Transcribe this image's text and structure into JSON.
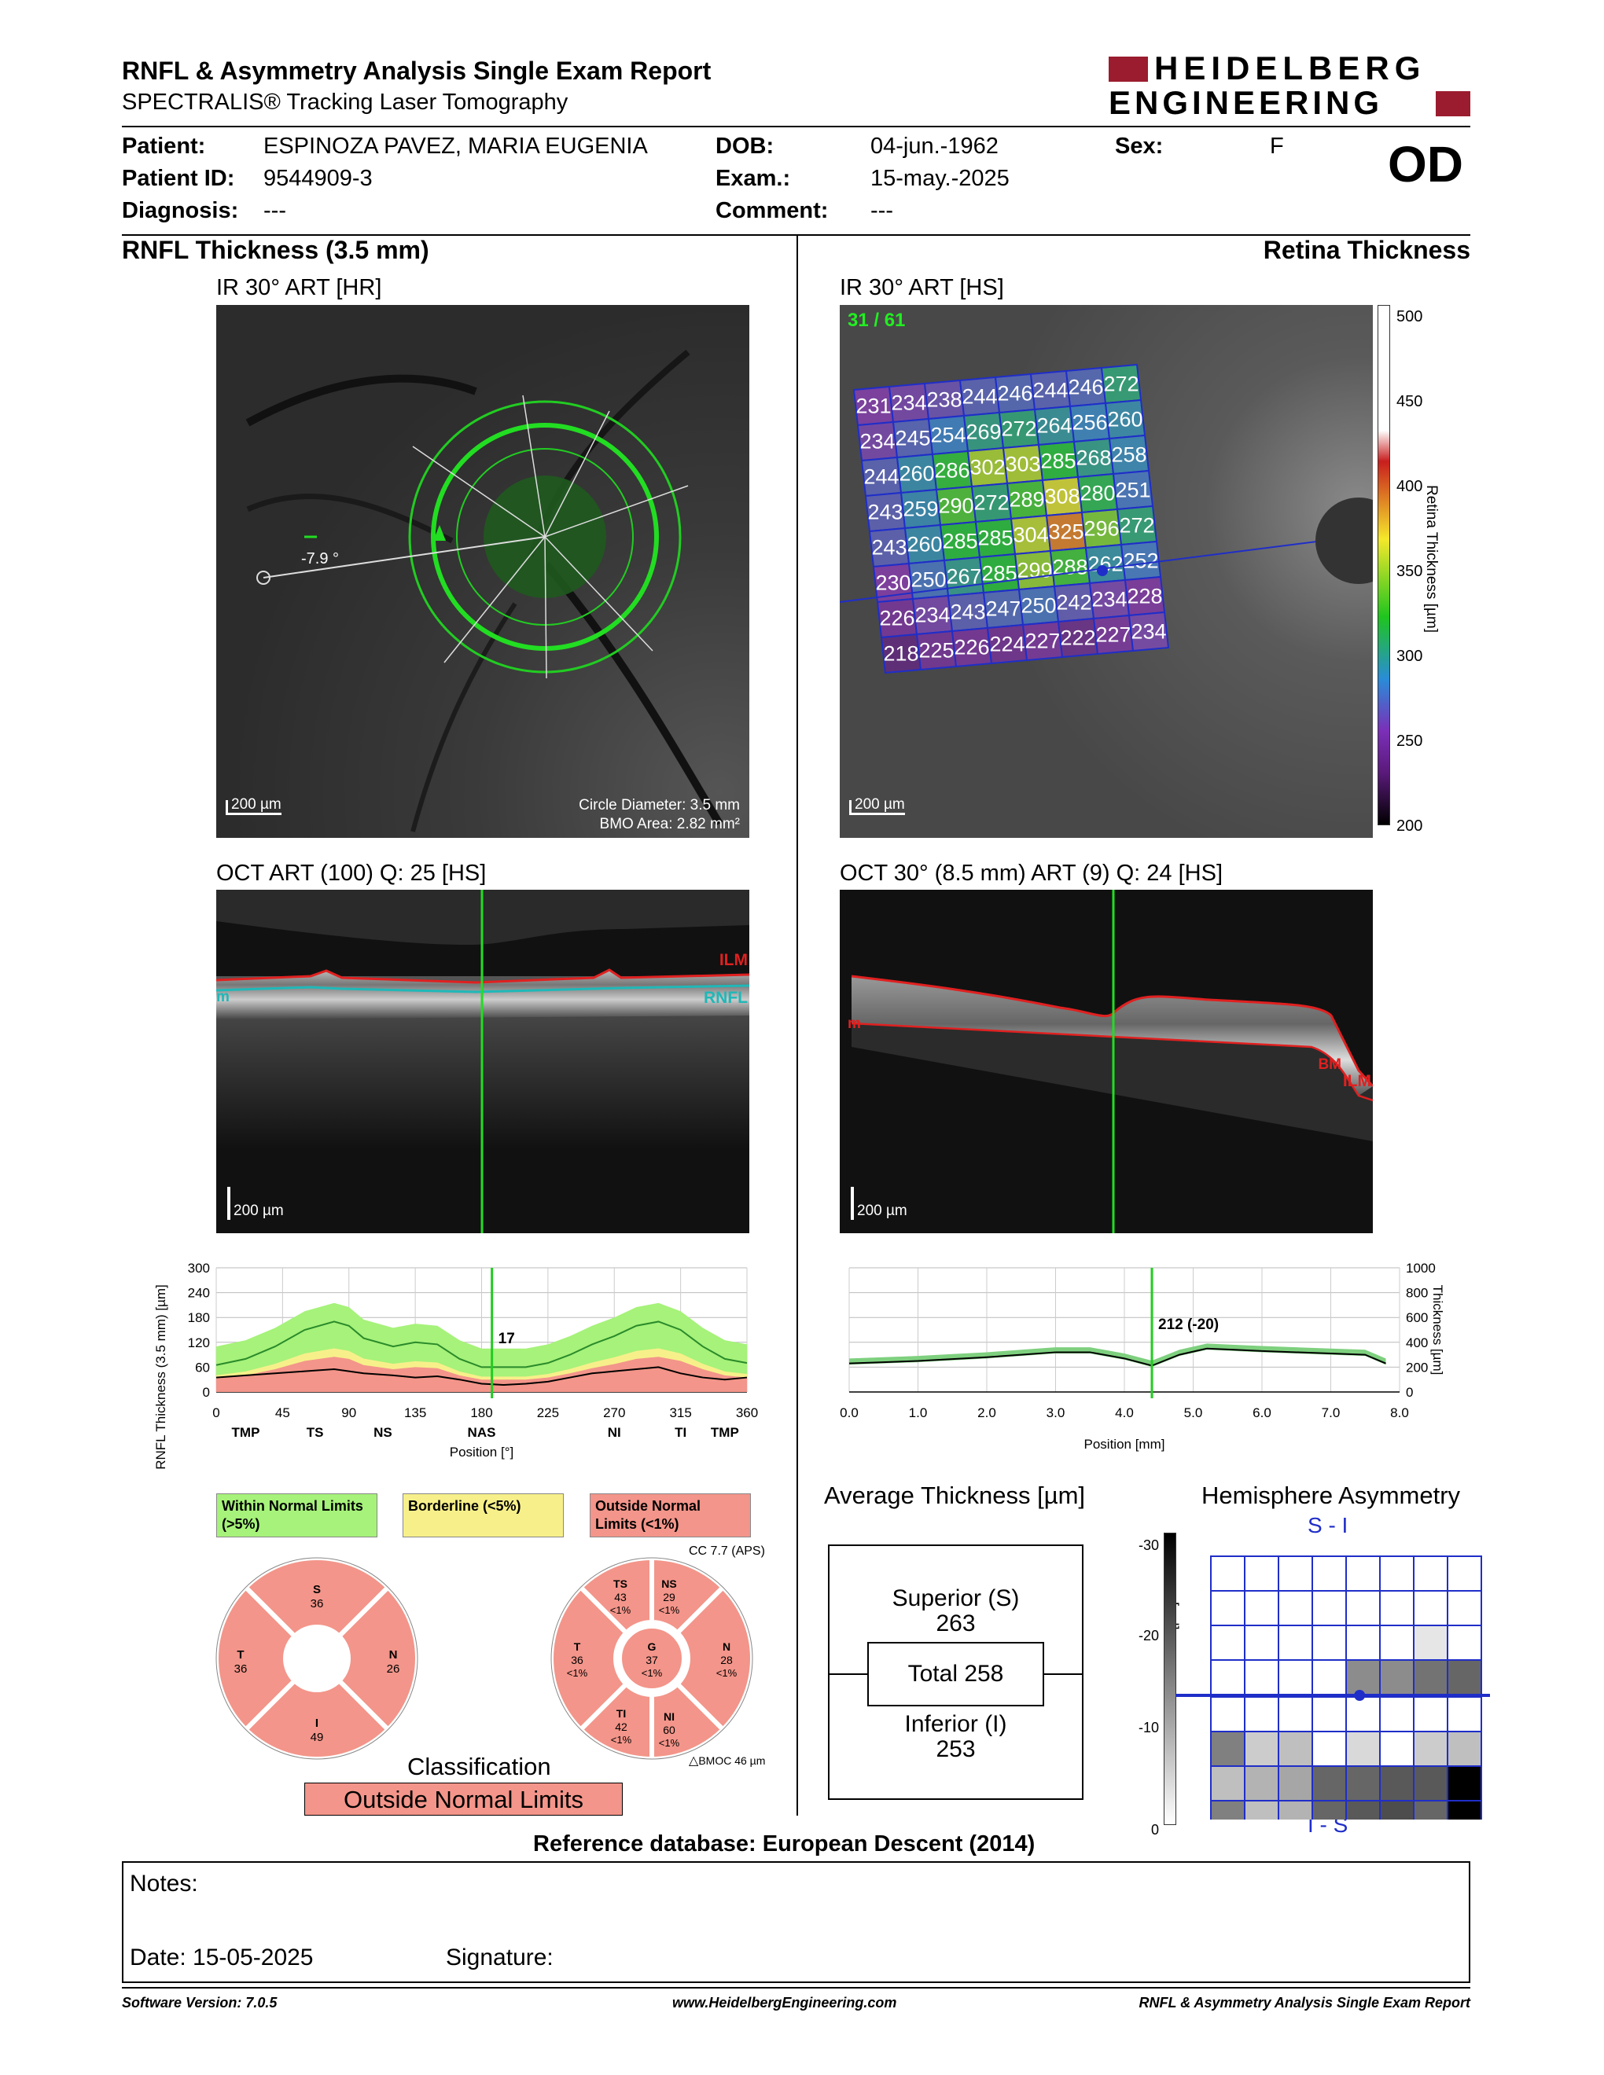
{
  "header": {
    "title": "RNFL & Asymmetry Analysis Single Exam Report",
    "subtitle": "SPECTRALIS® Tracking Laser Tomography",
    "logo_line1": "HEIDELBERG",
    "logo_line2": "ENGINEERING",
    "eye": "OD"
  },
  "patient": {
    "patient_label": "Patient:",
    "patient_value": "ESPINOZA PAVEZ, MARIA EUGENIA",
    "id_label": "Patient ID:",
    "id_value": "9544909-3",
    "diag_label": "Diagnosis:",
    "diag_value": "---",
    "dob_label": "DOB:",
    "dob_value": "04-jun.-1962",
    "exam_label": "Exam.:",
    "exam_value": "15-may.-2025",
    "comment_label": "Comment:",
    "comment_value": "---",
    "sex_label": "Sex:",
    "sex_value": "F"
  },
  "left": {
    "section_title": "RNFL Thickness (3.5 mm)",
    "ir_label": "IR 30° ART [HR]",
    "ir_angle": "-7.9 °",
    "ir_scale": "200 µm",
    "ir_circle": "Circle Diameter: 3.5 mm",
    "ir_bmo": "BMO Area: 2.82 mm²",
    "oct_label": "OCT ART (100) Q: 25 [HS]",
    "oct_ilm": "ILM",
    "oct_rnfl": "RNFL",
    "oct_bm": "m",
    "oct_scale": "200 µm"
  },
  "right": {
    "section_title": "Retina Thickness",
    "ir_label": "IR 30° ART [HS]",
    "ir_counter": "31 / 61",
    "ir_scale": "200 µm",
    "colorbar_title": "Retina Thickness [µm]",
    "colorbar_ticks": [
      "500",
      "450",
      "400",
      "350",
      "300",
      "250",
      "200"
    ],
    "grid": [
      [
        231,
        234,
        238,
        244,
        246,
        244,
        246,
        272
      ],
      [
        234,
        245,
        254,
        269,
        272,
        264,
        256,
        260
      ],
      [
        244,
        260,
        286,
        302,
        303,
        285,
        268,
        258
      ],
      [
        243,
        259,
        290,
        272,
        289,
        308,
        280,
        251
      ],
      [
        243,
        260,
        285,
        285,
        304,
        325,
        296,
        272
      ],
      [
        230,
        250,
        267,
        285,
        299,
        288,
        262,
        252
      ],
      [
        226,
        234,
        243,
        247,
        250,
        242,
        234,
        228
      ],
      [
        218,
        225,
        226,
        224,
        227,
        222,
        227,
        234
      ]
    ],
    "oct_label": "OCT 30° (8.5 mm) ART (9) Q: 24 [HS]",
    "oct_ilm": "ILM",
    "oct_bm": "BM",
    "oct_m": "m",
    "oct_scale": "200 µm"
  },
  "chart_data": [
    {
      "type": "area",
      "title": "",
      "ylabel": "RNFL Thickness (3.5 mm) [µm]",
      "xlabel": "Position [°]",
      "ylim": [
        0,
        300
      ],
      "xlim": [
        0,
        360
      ],
      "yticks": [
        "300",
        "240",
        "180",
        "120",
        "60",
        "0"
      ],
      "xticks": [
        "0",
        "45",
        "90",
        "135",
        "180",
        "225",
        "270",
        "315",
        "360"
      ],
      "sector_labels": [
        "TMP",
        "TS",
        "NS",
        "NAS",
        "NI",
        "TI",
        "TMP"
      ],
      "cursor_label": "17",
      "cursor_position": 187,
      "x": [
        0,
        20,
        40,
        60,
        80,
        90,
        100,
        120,
        135,
        150,
        165,
        180,
        195,
        210,
        225,
        240,
        255,
        270,
        285,
        300,
        315,
        330,
        345,
        360
      ],
      "normal_mean": [
        65,
        80,
        110,
        150,
        170,
        160,
        130,
        110,
        120,
        115,
        80,
        60,
        60,
        60,
        70,
        90,
        115,
        135,
        160,
        170,
        150,
        110,
        80,
        70
      ],
      "patient": [
        35,
        40,
        45,
        50,
        55,
        50,
        45,
        40,
        35,
        38,
        30,
        20,
        17,
        20,
        25,
        35,
        45,
        50,
        55,
        60,
        45,
        35,
        30,
        35
      ]
    },
    {
      "type": "area",
      "title": "",
      "ylabel": "Thickness [µm]",
      "xlabel": "Position [mm]",
      "ylim": [
        0,
        1000
      ],
      "xlim": [
        0.0,
        8.0
      ],
      "yticks": [
        "1000",
        "800",
        "600",
        "400",
        "200",
        "0"
      ],
      "xticks": [
        "0.0",
        "1.0",
        "2.0",
        "3.0",
        "4.0",
        "5.0",
        "6.0",
        "7.0",
        "8.0"
      ],
      "cursor_label": "212 (-20)",
      "cursor_position": 4.4,
      "x": [
        0.0,
        0.5,
        1.0,
        1.5,
        2.0,
        2.5,
        3.0,
        3.5,
        4.0,
        4.4,
        4.8,
        5.2,
        5.6,
        6.0,
        6.5,
        7.0,
        7.5,
        7.8
      ],
      "patient": [
        230,
        240,
        250,
        265,
        280,
        300,
        320,
        320,
        270,
        212,
        300,
        350,
        340,
        330,
        320,
        310,
        300,
        230
      ]
    }
  ],
  "legend": {
    "within": "Within Normal Limits (>5%)",
    "borderline": "Borderline (<5%)",
    "outside": "Outside Normal Limits (<1%)"
  },
  "sectors4": {
    "S": {
      "label": "S",
      "value": "36"
    },
    "T": {
      "label": "T",
      "value": "36"
    },
    "N": {
      "label": "N",
      "value": "26"
    },
    "I": {
      "label": "I",
      "value": "49"
    }
  },
  "sectors6": {
    "cc": "CC 7.7 (APS)",
    "TS": {
      "label": "TS",
      "value": "43",
      "pct": "<1%"
    },
    "NS": {
      "label": "NS",
      "value": "29",
      "pct": "<1%"
    },
    "T": {
      "label": "T",
      "value": "36",
      "pct": "<1%"
    },
    "G": {
      "label": "G",
      "value": "37",
      "pct": "<1%"
    },
    "N": {
      "label": "N",
      "value": "28",
      "pct": "<1%"
    },
    "TI": {
      "label": "TI",
      "value": "42",
      "pct": "<1%"
    },
    "NI": {
      "label": "NI",
      "value": "60",
      "pct": "<1%"
    },
    "bmo": "BMOC 46 µm"
  },
  "classification": {
    "title": "Classification",
    "result": "Outside Normal Limits"
  },
  "average": {
    "title": "Average Thickness [µm]",
    "superior_label": "Superior (S)",
    "superior_value": "263",
    "total": "Total 258",
    "inferior_label": "Inferior (I)",
    "inferior_value": "253"
  },
  "asymmetry": {
    "title": "Hemisphere Asymmetry",
    "top_label": "S - I",
    "bottom_label": "I - S",
    "scale_title": "Retina Thickness Difference [µm]",
    "scale_ticks": [
      "-30",
      "-20",
      "-10",
      "0"
    ],
    "grid": [
      [
        0,
        0,
        0,
        0,
        0,
        0,
        0,
        0
      ],
      [
        0,
        0,
        0,
        0,
        0,
        0,
        0,
        0
      ],
      [
        0,
        0,
        0,
        0,
        0,
        0,
        0.1,
        0
      ],
      [
        0,
        0,
        0,
        0,
        0.45,
        0.45,
        0.55,
        0.6
      ],
      [
        0,
        0,
        0,
        0,
        0,
        0,
        0,
        0
      ],
      [
        0.5,
        0.2,
        0.25,
        0,
        0.15,
        0,
        0.2,
        0.25
      ],
      [
        0.25,
        0.3,
        0.35,
        0.6,
        0.6,
        0.65,
        0.65,
        1.0
      ],
      [
        0.5,
        0.25,
        0.3,
        0.6,
        0.65,
        0.7,
        0.6,
        1.0
      ]
    ]
  },
  "reference": "Reference database: European Descent (2014)",
  "notes": {
    "notes_label": "Notes:",
    "date_label": "Date: 15-05-2025",
    "signature_label": "Signature:"
  },
  "footer": {
    "software": "Software Version: 7.0.5",
    "website": "www.HeidelbergEngineering.com",
    "report": "RNFL & Asymmetry Analysis Single Exam Report"
  },
  "colors": {
    "brand": "#9b1c2e",
    "green": "#22cc22",
    "normal": "#a6f27a",
    "borderline": "#f7f08a",
    "outside": "#f3958a",
    "grid_blue": "#1f2ec8"
  }
}
